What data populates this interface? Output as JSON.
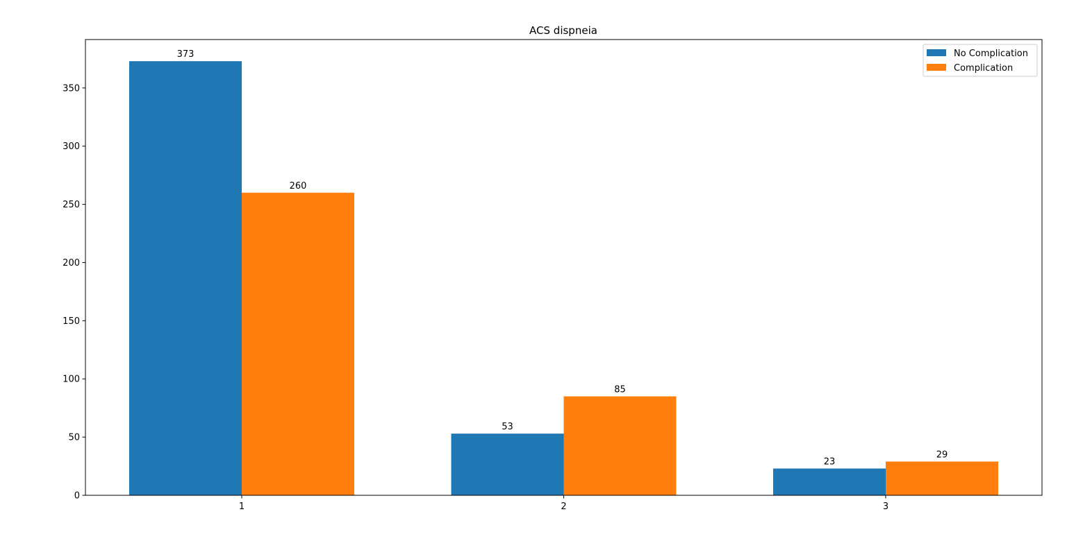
{
  "chart_data": {
    "type": "bar",
    "title": "ACS dispneia",
    "xlabel": "",
    "ylabel": "",
    "categories": [
      "1",
      "2",
      "3"
    ],
    "series": [
      {
        "name": "No Complication",
        "values": [
          373,
          53,
          23
        ],
        "color": "#1f77b4"
      },
      {
        "name": "Complication",
        "values": [
          260,
          85,
          29
        ],
        "color": "#ff7f0e"
      }
    ],
    "ylim": [
      0,
      391.6
    ],
    "yticks": [
      0,
      50,
      100,
      150,
      200,
      250,
      300,
      350
    ],
    "grid": false,
    "legend_position": "top-right",
    "data_labels": true
  }
}
